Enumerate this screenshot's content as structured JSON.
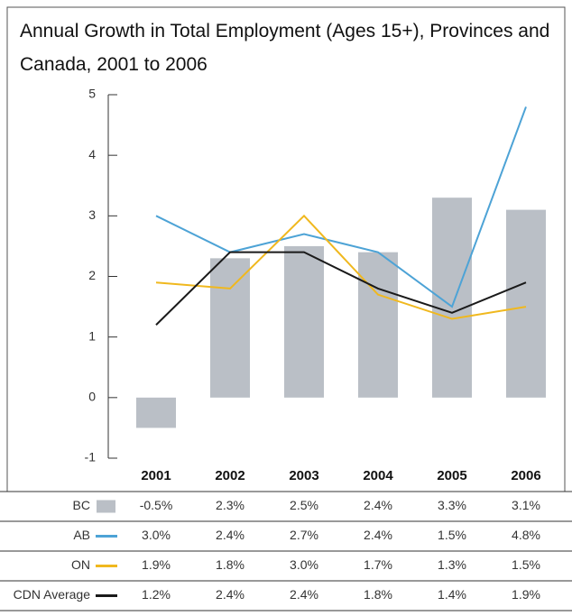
{
  "chart_data": {
    "type": "bar",
    "title": "Annual Growth in Total Employment (Ages 15+), Provinces and Canada, 2001 to 2006",
    "categories": [
      "2001",
      "2002",
      "2003",
      "2004",
      "2005",
      "2006"
    ],
    "ylim": [
      -1,
      5
    ],
    "yticks": [
      -1,
      0,
      1,
      2,
      3,
      4,
      5
    ],
    "series": [
      {
        "name": "BC",
        "type": "bar",
        "color": "#babfc6",
        "values": [
          -0.5,
          2.3,
          2.5,
          2.4,
          3.3,
          3.1
        ],
        "value_labels": [
          "-0.5%",
          "2.3%",
          "2.5%",
          "2.4%",
          "3.3%",
          "3.1%"
        ]
      },
      {
        "name": "AB",
        "type": "line",
        "color": "#4da3d6",
        "values": [
          3.0,
          2.4,
          2.7,
          2.4,
          1.5,
          4.8
        ],
        "value_labels": [
          "3.0%",
          "2.4%",
          "2.7%",
          "2.4%",
          "1.5%",
          "4.8%"
        ]
      },
      {
        "name": "ON",
        "type": "line",
        "color": "#f0b81e",
        "values": [
          1.9,
          1.8,
          3.0,
          1.7,
          1.3,
          1.5
        ],
        "value_labels": [
          "1.9%",
          "1.8%",
          "3.0%",
          "1.7%",
          "1.3%",
          "1.5%"
        ]
      },
      {
        "name": "CDN Average",
        "type": "line",
        "color": "#1a1a1a",
        "values": [
          1.2,
          2.4,
          2.4,
          1.8,
          1.4,
          1.9
        ],
        "value_labels": [
          "1.2%",
          "2.4%",
          "2.4%",
          "1.8%",
          "1.4%",
          "1.9%"
        ]
      }
    ]
  }
}
